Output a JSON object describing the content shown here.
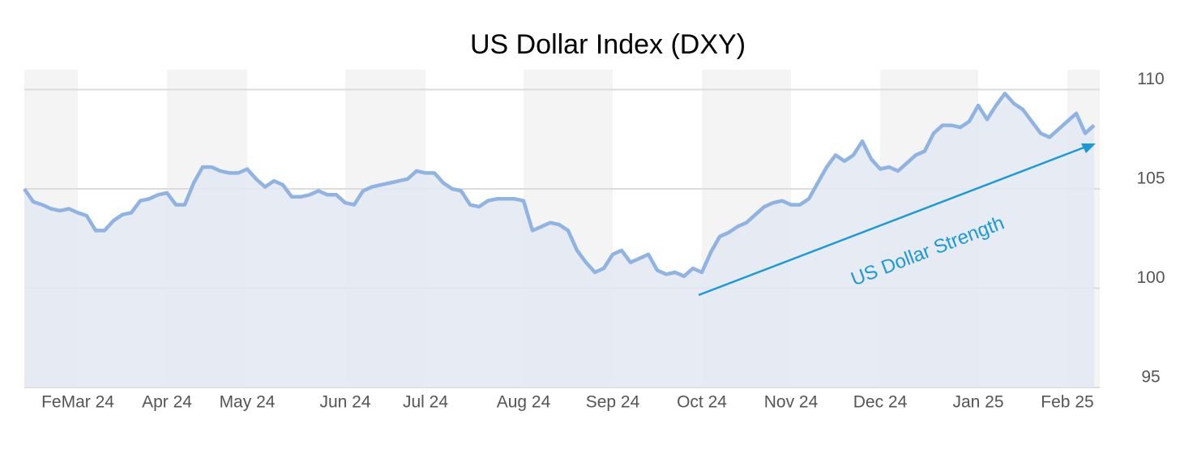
{
  "chart_data": {
    "type": "area",
    "title": "US Dollar Index (DXY)",
    "annotation": "US Dollar Strength",
    "categories": [
      null,
      null,
      null,
      null,
      null,
      null,
      "FeMar 24",
      null,
      null,
      null,
      null,
      null,
      null,
      null,
      null,
      null,
      "Apr 24",
      null,
      null,
      null,
      null,
      null,
      null,
      null,
      null,
      "May 24",
      null,
      null,
      null,
      null,
      null,
      null,
      null,
      null,
      null,
      null,
      "Jun 24",
      null,
      null,
      null,
      null,
      null,
      null,
      null,
      null,
      "Jul 24",
      null,
      null,
      null,
      null,
      null,
      null,
      null,
      null,
      null,
      null,
      "Aug 24",
      null,
      null,
      null,
      null,
      null,
      null,
      null,
      null,
      null,
      "Sep 24",
      null,
      null,
      null,
      null,
      null,
      null,
      null,
      null,
      null,
      "Oct 24",
      null,
      null,
      null,
      null,
      null,
      null,
      null,
      null,
      null,
      "Nov 24",
      null,
      null,
      null,
      null,
      null,
      null,
      null,
      null,
      null,
      "Dec 24",
      null,
      null,
      null,
      null,
      null,
      null,
      null,
      null,
      null,
      null,
      "Jan 25",
      null,
      null,
      null,
      null,
      null,
      null,
      null,
      null,
      null,
      "Feb 25",
      null,
      null,
      null
    ],
    "values": [
      105.0,
      104.35,
      104.2,
      104.0,
      103.9,
      104.0,
      103.8,
      103.65,
      102.9,
      102.9,
      103.4,
      103.7,
      103.8,
      104.4,
      104.5,
      104.7,
      104.8,
      104.2,
      104.2,
      105.3,
      106.1,
      106.1,
      105.9,
      105.8,
      105.8,
      106.0,
      105.5,
      105.1,
      105.4,
      105.2,
      104.6,
      104.6,
      104.7,
      104.9,
      104.7,
      104.7,
      104.3,
      104.2,
      104.9,
      105.1,
      105.2,
      105.3,
      105.4,
      105.5,
      105.9,
      105.8,
      105.8,
      105.3,
      105.0,
      104.9,
      104.2,
      104.1,
      104.4,
      104.5,
      104.5,
      104.5,
      104.4,
      102.9,
      103.1,
      103.3,
      103.2,
      102.9,
      101.9,
      101.3,
      100.8,
      101.0,
      101.7,
      101.9,
      101.3,
      101.5,
      101.7,
      100.9,
      100.7,
      100.8,
      100.6,
      101.0,
      100.8,
      101.8,
      102.6,
      102.8,
      103.1,
      103.3,
      103.7,
      104.1,
      104.3,
      104.4,
      104.2,
      104.2,
      104.5,
      105.3,
      106.1,
      106.7,
      106.4,
      106.7,
      107.4,
      106.5,
      106.0,
      106.1,
      105.9,
      106.3,
      106.7,
      106.9,
      107.8,
      108.2,
      108.2,
      108.1,
      108.4,
      109.2,
      108.5,
      109.2,
      109.8,
      109.3,
      109.0,
      108.4,
      107.8,
      107.6,
      108.0,
      108.4,
      108.8,
      107.8,
      108.2
    ],
    "color": "#8fb3e3",
    "fill": "#e3e8f2",
    "band_color": "#f4f4f4",
    "annotation_color": "#1a9ad6",
    "ylim": [
      95,
      111
    ],
    "yticks": [
      95,
      100,
      105,
      110
    ],
    "grid": true
  }
}
